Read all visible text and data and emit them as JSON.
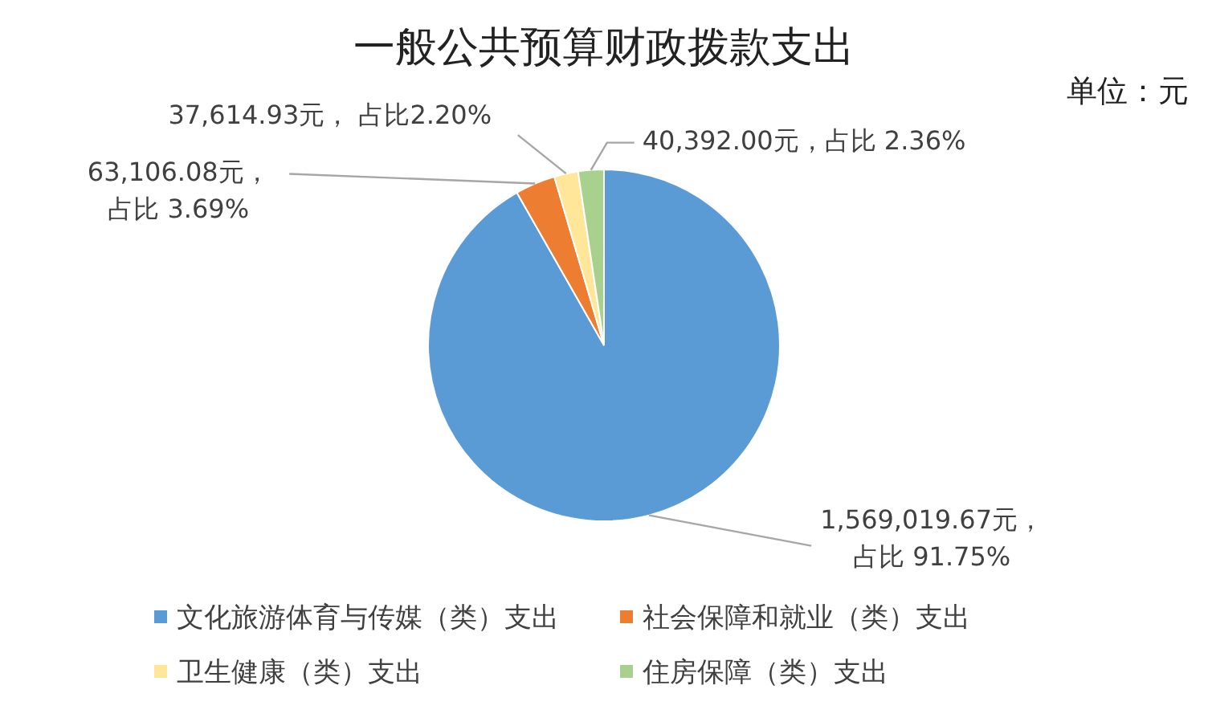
{
  "chart_data": {
    "type": "pie",
    "title": "一般公共预算财政拨款支出",
    "annotations": [
      "单位：元"
    ],
    "categories": [
      "文化旅游体育与传媒（类）支出",
      "社会保障和就业（类）支出",
      "卫生健康（类）支出",
      "住房保障（类）支出"
    ],
    "values": [
      1569019.67,
      63106.08,
      37614.93,
      40392.0
    ],
    "colors": [
      "#5b9bd5",
      "#ed7d31",
      "#ffe699",
      "#a9d18e"
    ],
    "value_labels": [
      "1,569,019.67元，占比 91.75%",
      "63,106.08元，占比 3.69%",
      "37,614.93元， 占比2.20%",
      "40,392.00元，占比 2.36%"
    ],
    "legend": "bottom"
  }
}
